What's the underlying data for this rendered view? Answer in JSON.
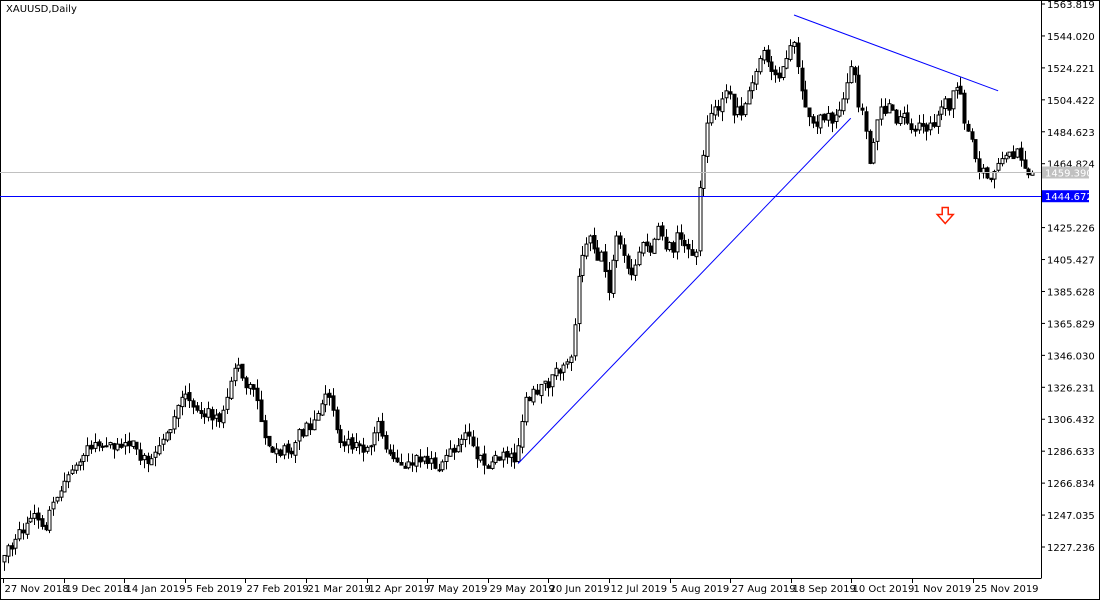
{
  "window": {
    "title": "XAUUSD,Daily"
  },
  "chart_data": {
    "type": "candlestick",
    "symbol": "XAUUSD",
    "timeframe": "Daily",
    "ylim": [
      1217.0,
      1563.819
    ],
    "y_tick_labels": [
      "1563.819",
      "1544.020",
      "1524.221",
      "1504.422",
      "1484.623",
      "1464.824",
      "1425.226",
      "1405.427",
      "1385.628",
      "1365.829",
      "1346.030",
      "1326.231",
      "1306.432",
      "1286.633",
      "1266.834",
      "1247.035",
      "1227.236"
    ],
    "x_tick_labels": [
      "27 Nov 2018",
      "19 Dec 2018",
      "14 Jan 2019",
      "5 Feb 2019",
      "27 Feb 2019",
      "21 Mar 2019",
      "12 Apr 2019",
      "7 May 2019",
      "29 May 2019",
      "20 Jun 2019",
      "12 Jul 2019",
      "5 Aug 2019",
      "27 Aug 2019",
      "18 Sep 2019",
      "10 Oct 2019",
      "1 Nov 2019",
      "25 Nov 2019"
    ],
    "current_price": {
      "label": "1459.390",
      "value": 1459.39,
      "color": "#c0c0c0"
    },
    "horizontal_line": {
      "label": "1444.672",
      "value": 1444.672,
      "color": "#0000ff"
    },
    "trendlines": [
      {
        "from": {
          "bar": 136,
          "price": 1279
        },
        "to": {
          "bar": 224,
          "price": 1493
        },
        "color": "#0000ff"
      },
      {
        "from": {
          "bar": 209,
          "price": 1557
        },
        "to": {
          "bar": 263,
          "price": 1510
        },
        "color": "#0000ff"
      }
    ],
    "arrow": {
      "type": "down",
      "bar": 249,
      "price": 1429,
      "color": "#ff2000"
    },
    "bull_color": "#ffffff",
    "bear_color": "#000000",
    "closes": [
      1222,
      1228,
      1226,
      1232,
      1238,
      1236,
      1242,
      1245,
      1248,
      1244,
      1240,
      1238,
      1250,
      1255,
      1258,
      1262,
      1268,
      1272,
      1275,
      1278,
      1280,
      1284,
      1290,
      1288,
      1292,
      1290,
      1289,
      1290,
      1292,
      1288,
      1291,
      1289,
      1292,
      1290,
      1293,
      1288,
      1281,
      1284,
      1279,
      1282,
      1286,
      1290,
      1294,
      1298,
      1300,
      1308,
      1315,
      1320,
      1322,
      1318,
      1314,
      1312,
      1310,
      1308,
      1313,
      1306,
      1309,
      1305,
      1312,
      1320,
      1330,
      1338,
      1340,
      1332,
      1326,
      1328,
      1325,
      1318,
      1305,
      1295,
      1290,
      1286,
      1288,
      1284,
      1290,
      1286,
      1285,
      1292,
      1300,
      1296,
      1304,
      1300,
      1306,
      1310,
      1316,
      1322,
      1320,
      1312,
      1300,
      1292,
      1290,
      1294,
      1288,
      1292,
      1290,
      1286,
      1289,
      1290,
      1298,
      1305,
      1296,
      1288,
      1285,
      1282,
      1280,
      1278,
      1276,
      1280,
      1278,
      1284,
      1280,
      1283,
      1279,
      1282,
      1276,
      1275,
      1280,
      1284,
      1288,
      1286,
      1290,
      1294,
      1298,
      1296,
      1290,
      1282,
      1284,
      1278,
      1276,
      1280,
      1284,
      1281,
      1286,
      1283,
      1285,
      1280,
      1290,
      1305,
      1320,
      1318,
      1325,
      1322,
      1328,
      1330,
      1326,
      1334,
      1338,
      1335,
      1340,
      1342,
      1345,
      1365,
      1395,
      1408,
      1415,
      1420,
      1412,
      1405,
      1410,
      1398,
      1385,
      1405,
      1420,
      1415,
      1408,
      1400,
      1396,
      1402,
      1410,
      1416,
      1414,
      1410,
      1418,
      1426,
      1420,
      1412,
      1416,
      1410,
      1422,
      1418,
      1414,
      1412,
      1408,
      1410,
      1450,
      1470,
      1490,
      1496,
      1500,
      1498,
      1505,
      1510,
      1508,
      1495,
      1500,
      1495,
      1502,
      1510,
      1515,
      1522,
      1530,
      1535,
      1528,
      1522,
      1520,
      1518,
      1525,
      1530,
      1538,
      1540,
      1525,
      1510,
      1500,
      1494,
      1490,
      1488,
      1495,
      1492,
      1496,
      1490,
      1495,
      1498,
      1505,
      1515,
      1525,
      1520,
      1500,
      1498,
      1485,
      1465,
      1478,
      1492,
      1500,
      1496,
      1502,
      1498,
      1490,
      1494,
      1496,
      1490,
      1486,
      1485,
      1490,
      1488,
      1485,
      1490,
      1488,
      1495,
      1500,
      1505,
      1498,
      1510,
      1512,
      1508,
      1490,
      1485,
      1480,
      1468,
      1460,
      1462,
      1456,
      1455,
      1460,
      1465,
      1468,
      1470,
      1472,
      1468,
      1474,
      1467,
      1462,
      1458,
      1459.39
    ]
  }
}
